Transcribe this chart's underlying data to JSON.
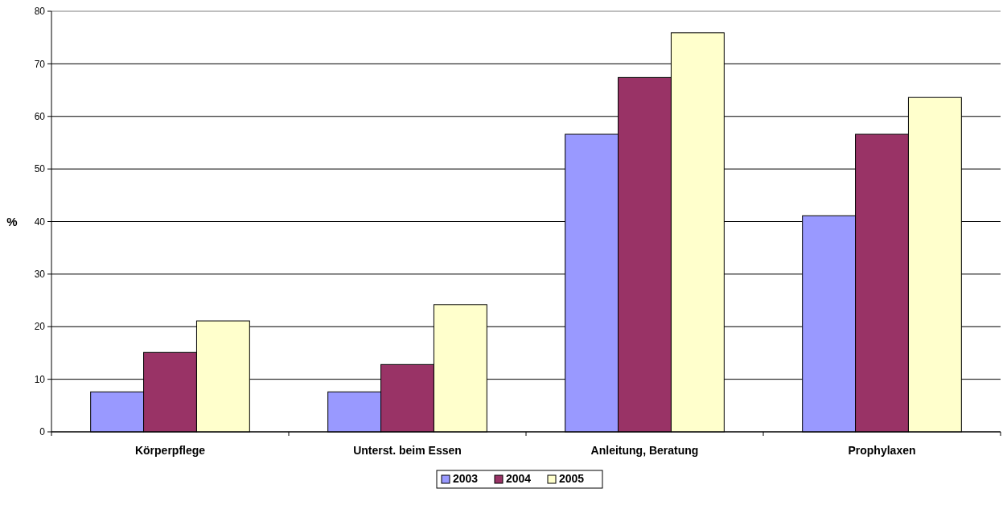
{
  "chart_data": {
    "type": "bar",
    "ylabel": "%",
    "categories": [
      "Körperpflege",
      "Unterst. beim Essen",
      "Anleitung, Beratung",
      "Prophylaxen"
    ],
    "series": [
      {
        "name": "2003",
        "color": "#9999ff",
        "values": [
          7.6,
          7.6,
          56.6,
          41.1
        ]
      },
      {
        "name": "2004",
        "color": "#993366",
        "values": [
          15.1,
          12.8,
          67.4,
          56.6
        ]
      },
      {
        "name": "2005",
        "color": "#ffffcc",
        "values": [
          21.1,
          24.2,
          75.9,
          63.6
        ]
      }
    ],
    "ylim": [
      0,
      80
    ],
    "yticks": [
      0,
      10,
      20,
      30,
      40,
      50,
      60,
      70,
      80
    ],
    "grid": "y",
    "legend": "bottom"
  }
}
